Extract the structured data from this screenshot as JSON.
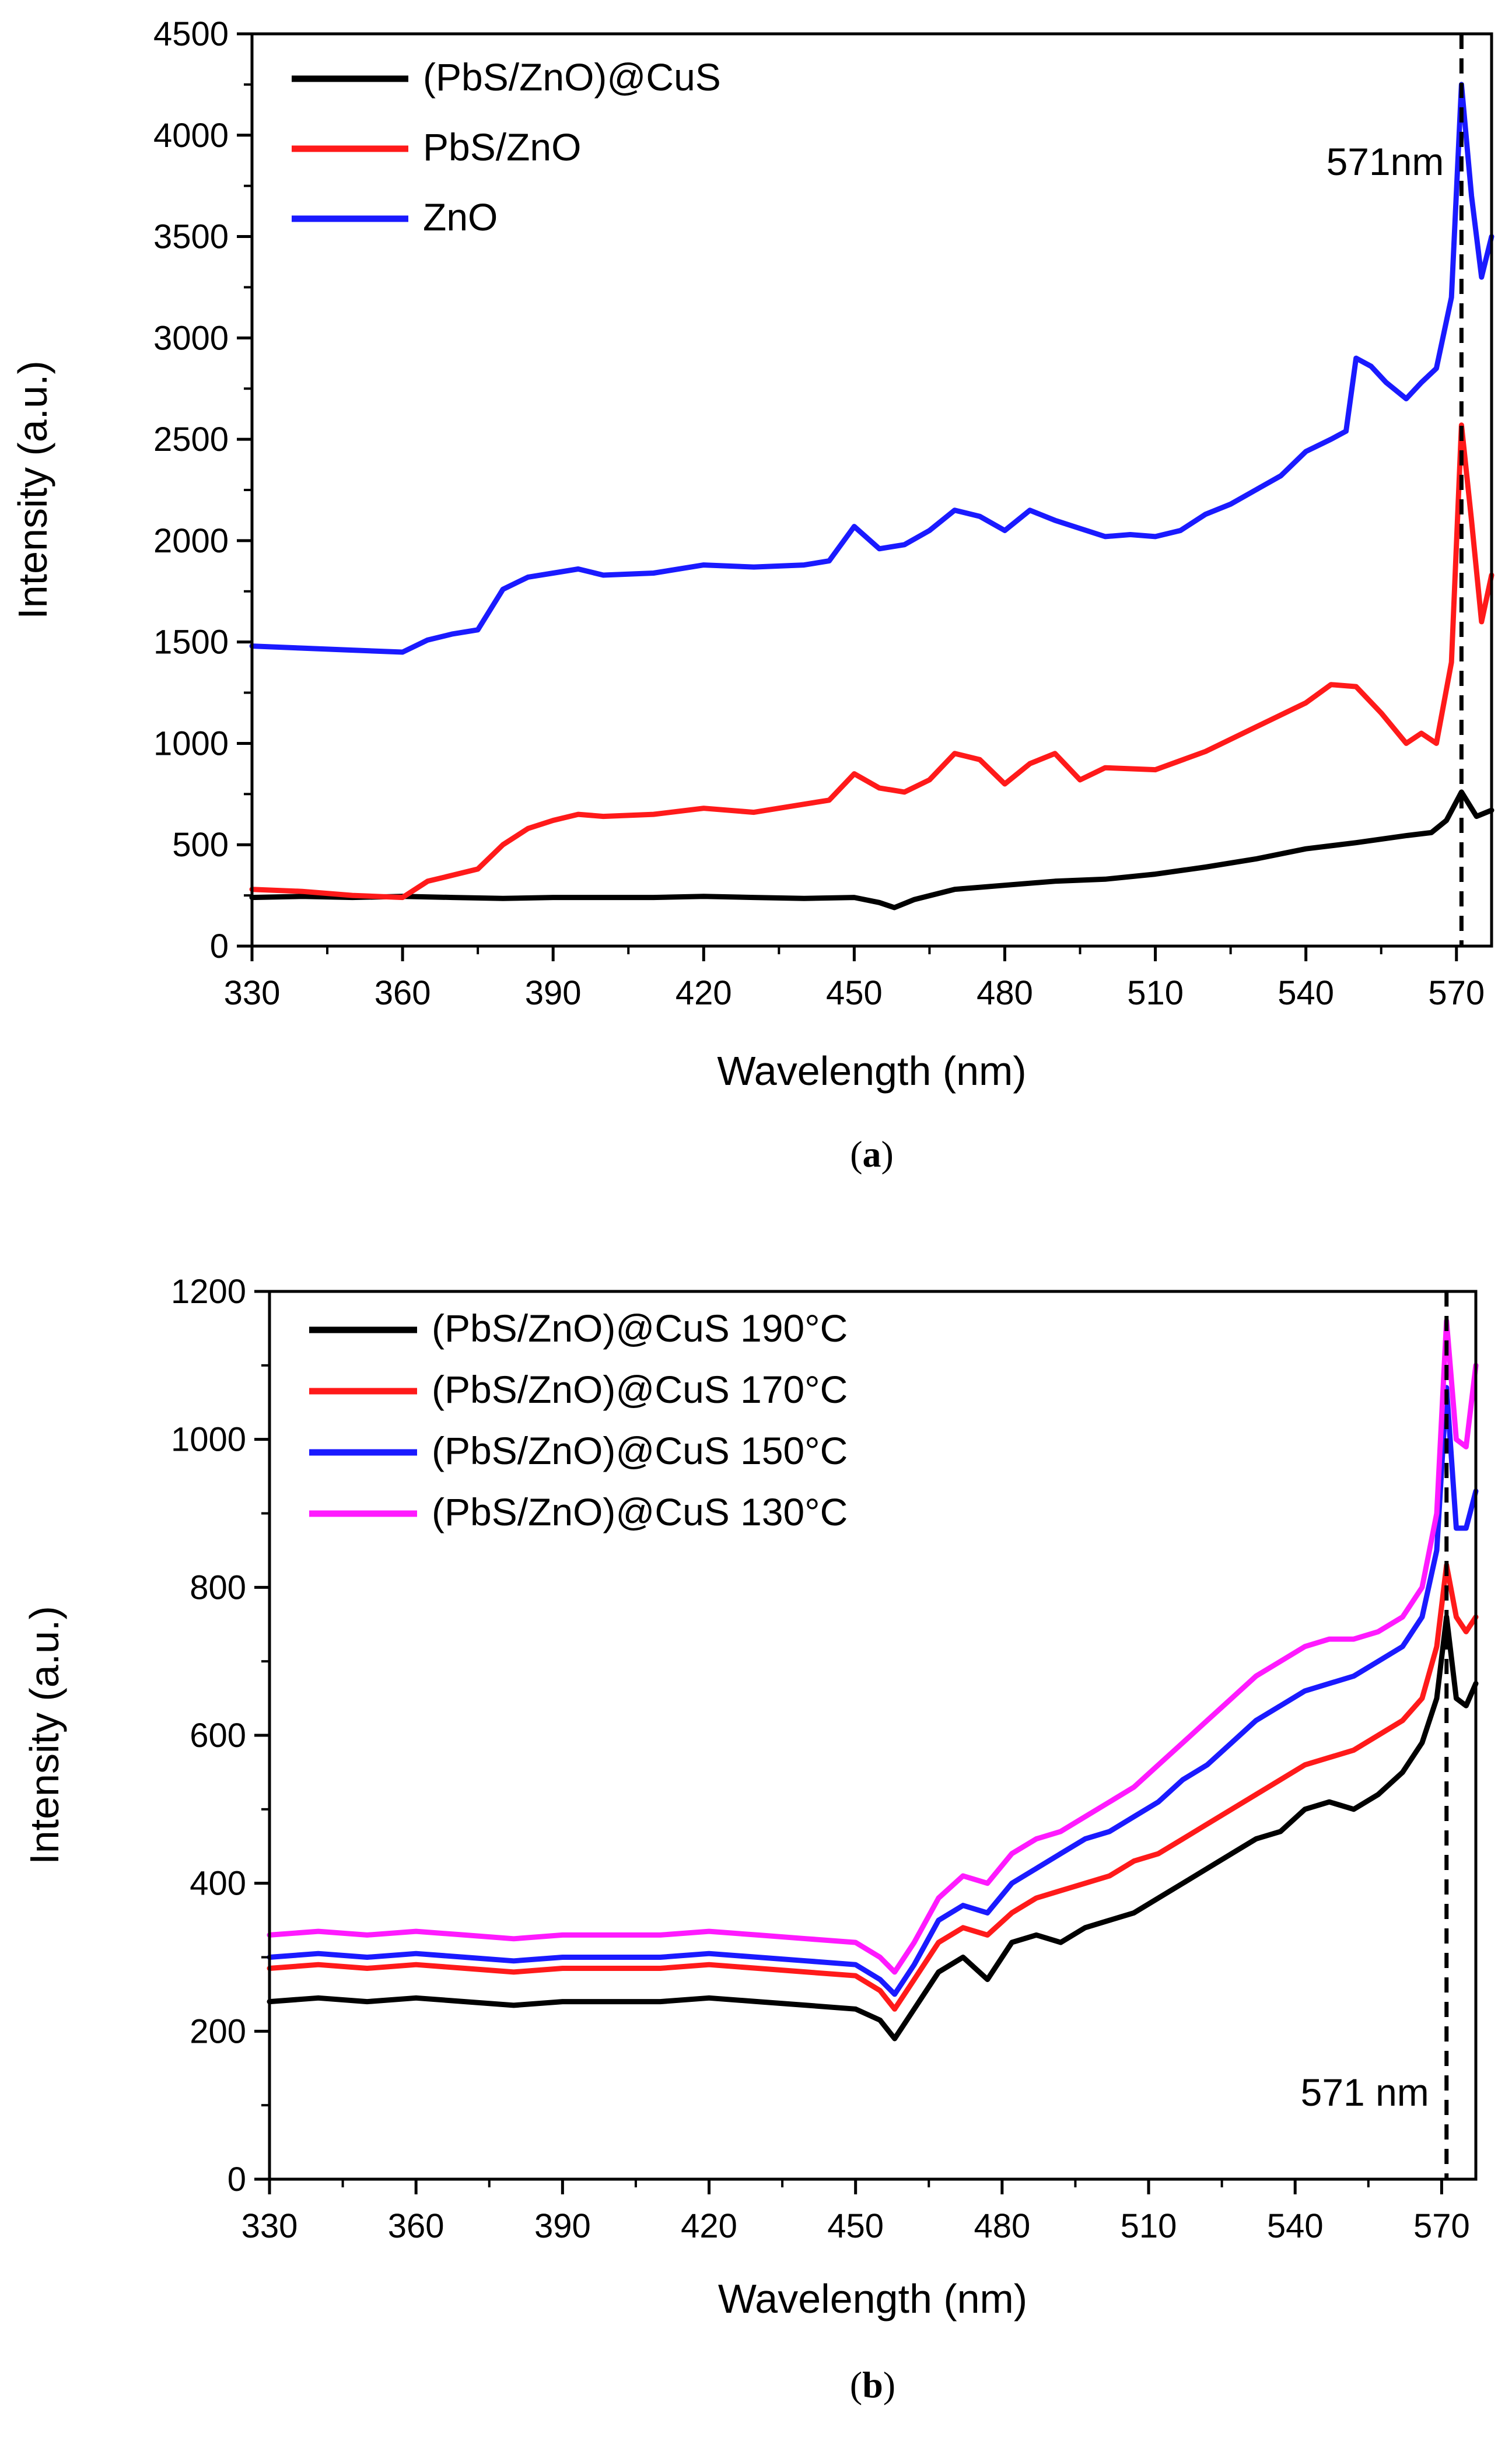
{
  "chart_data": [
    {
      "type": "line",
      "panel_caption": "(a)",
      "panel_letter": "a",
      "xlabel": "Wavelength (nm)",
      "ylabel": "Intensity (a.u.)",
      "xlim": [
        330,
        577
      ],
      "ylim": [
        0,
        4500
      ],
      "xticks": [
        330,
        360,
        390,
        420,
        450,
        480,
        510,
        540,
        570
      ],
      "yticks": [
        0,
        500,
        1000,
        1500,
        2000,
        2500,
        3000,
        3500,
        4000,
        4500
      ],
      "annotation": {
        "text": "571nm",
        "x": 571
      },
      "legend_position": "top-left",
      "series": [
        {
          "name": "(PbS/ZnO)@CuS",
          "color": "#000000",
          "x": [
            330,
            340,
            350,
            360,
            370,
            380,
            390,
            400,
            410,
            420,
            430,
            440,
            450,
            455,
            458,
            462,
            470,
            480,
            490,
            500,
            510,
            520,
            530,
            540,
            550,
            560,
            565,
            568,
            571,
            574,
            577
          ],
          "y": [
            240,
            245,
            240,
            245,
            240,
            235,
            240,
            240,
            240,
            245,
            240,
            235,
            240,
            215,
            190,
            230,
            280,
            300,
            320,
            330,
            355,
            390,
            430,
            480,
            510,
            545,
            560,
            620,
            760,
            640,
            670
          ]
        },
        {
          "name": "PbS/ZnO",
          "color": "#ff1a1a",
          "x": [
            330,
            340,
            350,
            360,
            365,
            370,
            375,
            380,
            385,
            390,
            395,
            400,
            410,
            420,
            430,
            440,
            445,
            450,
            455,
            460,
            465,
            470,
            475,
            480,
            485,
            490,
            495,
            500,
            510,
            520,
            530,
            540,
            545,
            550,
            555,
            560,
            563,
            566,
            569,
            571,
            573,
            575,
            577
          ],
          "y": [
            280,
            270,
            250,
            240,
            320,
            350,
            380,
            500,
            580,
            620,
            650,
            640,
            650,
            680,
            660,
            700,
            720,
            850,
            780,
            760,
            820,
            950,
            920,
            800,
            900,
            950,
            820,
            880,
            870,
            960,
            1080,
            1200,
            1290,
            1280,
            1150,
            1000,
            1050,
            1000,
            1400,
            2570,
            2100,
            1600,
            1830
          ]
        },
        {
          "name": "ZnO",
          "color": "#1a1aff",
          "x": [
            330,
            340,
            350,
            360,
            365,
            370,
            375,
            380,
            385,
            390,
            395,
            400,
            410,
            420,
            430,
            440,
            445,
            450,
            455,
            460,
            465,
            470,
            475,
            480,
            485,
            490,
            495,
            500,
            505,
            510,
            515,
            520,
            525,
            530,
            535,
            540,
            545,
            548,
            550,
            553,
            556,
            560,
            563,
            566,
            569,
            571,
            573,
            575,
            577
          ],
          "y": [
            1480,
            1470,
            1460,
            1450,
            1510,
            1540,
            1560,
            1760,
            1820,
            1840,
            1860,
            1830,
            1840,
            1880,
            1870,
            1880,
            1900,
            2070,
            1960,
            1980,
            2050,
            2150,
            2120,
            2050,
            2150,
            2100,
            2060,
            2020,
            2030,
            2020,
            2050,
            2130,
            2180,
            2250,
            2320,
            2440,
            2500,
            2540,
            2900,
            2860,
            2780,
            2700,
            2780,
            2850,
            3200,
            4250,
            3700,
            3300,
            3500
          ]
        }
      ]
    },
    {
      "type": "line",
      "panel_caption": "(b)",
      "panel_letter": "b",
      "xlabel": "Wavelength (nm)",
      "ylabel": "Intensity (a.u.)",
      "xlim": [
        330,
        577
      ],
      "ylim": [
        0,
        1200
      ],
      "xticks": [
        330,
        360,
        390,
        420,
        450,
        480,
        510,
        540,
        570
      ],
      "yticks": [
        0,
        200,
        400,
        600,
        800,
        1000,
        1200
      ],
      "annotation": {
        "text": "571 nm",
        "x": 571
      },
      "legend_position": "top-left",
      "series": [
        {
          "name": "(PbS/ZnO)@CuS 190°C",
          "color": "#000000",
          "x": [
            330,
            340,
            350,
            360,
            370,
            380,
            390,
            400,
            410,
            420,
            430,
            440,
            450,
            455,
            458,
            462,
            467,
            472,
            477,
            482,
            487,
            492,
            497,
            502,
            507,
            512,
            517,
            522,
            527,
            532,
            537,
            542,
            547,
            552,
            557,
            562,
            566,
            569,
            571,
            573,
            575,
            577
          ],
          "y": [
            240,
            245,
            240,
            245,
            240,
            235,
            240,
            240,
            240,
            245,
            240,
            235,
            230,
            215,
            190,
            230,
            280,
            300,
            270,
            320,
            330,
            320,
            340,
            350,
            360,
            380,
            400,
            420,
            440,
            460,
            470,
            500,
            510,
            500,
            520,
            550,
            590,
            650,
            760,
            650,
            640,
            670
          ]
        },
        {
          "name": "(PbS/ZnO)@CuS 170°C",
          "color": "#ff1a1a",
          "x": [
            330,
            340,
            350,
            360,
            370,
            380,
            390,
            400,
            410,
            420,
            430,
            440,
            450,
            455,
            458,
            462,
            467,
            472,
            477,
            482,
            487,
            492,
            497,
            502,
            507,
            512,
            517,
            522,
            527,
            532,
            537,
            542,
            547,
            552,
            557,
            562,
            566,
            569,
            571,
            573,
            575,
            577
          ],
          "y": [
            285,
            290,
            285,
            290,
            285,
            280,
            285,
            285,
            285,
            290,
            285,
            280,
            275,
            255,
            230,
            270,
            320,
            340,
            330,
            360,
            380,
            390,
            400,
            410,
            430,
            440,
            460,
            480,
            500,
            520,
            540,
            560,
            570,
            580,
            600,
            620,
            650,
            720,
            830,
            760,
            740,
            760
          ]
        },
        {
          "name": "(PbS/ZnO)@CuS 150°C",
          "color": "#1a1aff",
          "x": [
            330,
            340,
            350,
            360,
            370,
            380,
            390,
            400,
            410,
            420,
            430,
            440,
            450,
            455,
            458,
            462,
            467,
            472,
            477,
            482,
            487,
            492,
            497,
            502,
            507,
            512,
            517,
            522,
            527,
            532,
            537,
            542,
            547,
            552,
            557,
            562,
            566,
            569,
            571,
            573,
            575,
            577
          ],
          "y": [
            300,
            305,
            300,
            305,
            300,
            295,
            300,
            300,
            300,
            305,
            300,
            295,
            290,
            270,
            250,
            290,
            350,
            370,
            360,
            400,
            420,
            440,
            460,
            470,
            490,
            510,
            540,
            560,
            590,
            620,
            640,
            660,
            670,
            680,
            700,
            720,
            760,
            850,
            1070,
            880,
            880,
            930
          ]
        },
        {
          "name": "(PbS/ZnO)@CuS 130°C",
          "color": "#ff1aff",
          "x": [
            330,
            340,
            350,
            360,
            370,
            380,
            390,
            400,
            410,
            420,
            430,
            440,
            450,
            455,
            458,
            462,
            467,
            472,
            477,
            482,
            487,
            492,
            497,
            502,
            507,
            512,
            517,
            522,
            527,
            532,
            537,
            542,
            547,
            552,
            557,
            562,
            566,
            569,
            571,
            573,
            575,
            577
          ],
          "y": [
            330,
            335,
            330,
            335,
            330,
            325,
            330,
            330,
            330,
            335,
            330,
            325,
            320,
            300,
            280,
            320,
            380,
            410,
            400,
            440,
            460,
            470,
            490,
            510,
            530,
            560,
            590,
            620,
            650,
            680,
            700,
            720,
            730,
            730,
            740,
            760,
            800,
            900,
            1160,
            1000,
            990,
            1100
          ]
        }
      ]
    }
  ]
}
